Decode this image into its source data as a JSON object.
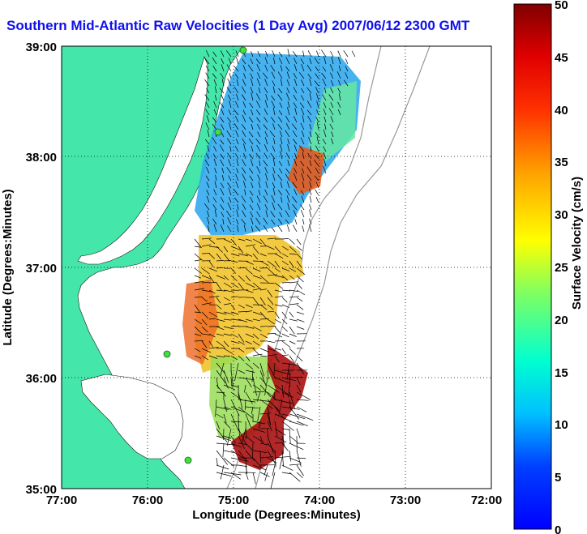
{
  "title": "Southern Mid-Atlantic Raw Velocities (1 Day Avg) 2007/06/12 2300 GMT",
  "x_axis": {
    "label": "Longitude (Degrees:Minutes)",
    "ticks": [
      "77:00",
      "76:00",
      "75:00",
      "74:00",
      "73:00",
      "72:00"
    ],
    "range": [
      -77,
      -72
    ]
  },
  "y_axis": {
    "label": "Latitude (Degrees:Minutes)",
    "ticks": [
      "39:00",
      "38:00",
      "37:00",
      "36:00",
      "35:00"
    ],
    "range": [
      35,
      39
    ]
  },
  "colorbar": {
    "label": "Surface Velocity (cm/s)",
    "ticks": [
      "50",
      "45",
      "40",
      "35",
      "30",
      "25",
      "20",
      "15",
      "10",
      "5",
      "0"
    ],
    "range": [
      0,
      50
    ],
    "colormap": "jet"
  },
  "colors": {
    "land": "#44e6aa",
    "water": "#ffffff",
    "title": "#1010ee",
    "station": "#44dd44"
  },
  "grid": "dotted"
}
